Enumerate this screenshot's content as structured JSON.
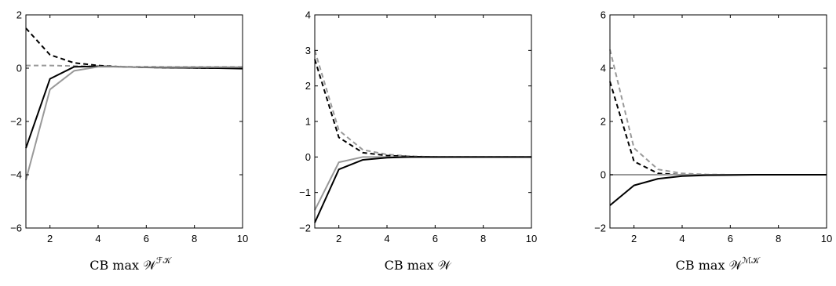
{
  "chart_data": [
    {
      "type": "line",
      "title": "",
      "caption": {
        "text": "CB max 𝒲",
        "sup": "ℱ𝒦"
      },
      "xlabel": "",
      "ylabel": "",
      "xlim": [
        1,
        10
      ],
      "ylim": [
        -6,
        2
      ],
      "xticks": [
        2,
        4,
        6,
        8,
        10
      ],
      "yticks": [
        -6,
        -4,
        -2,
        0,
        2
      ],
      "grid": false,
      "series": [
        {
          "color": "#000000",
          "dash": true,
          "x": [
            1,
            2,
            3,
            4,
            5,
            6,
            7,
            8,
            9,
            10
          ],
          "y": [
            1.5,
            0.5,
            0.2,
            0.1,
            0.05,
            0.03,
            0.02,
            0.01,
            0.0,
            0.0
          ]
        },
        {
          "color": "#999999",
          "dash": true,
          "x": [
            1,
            2,
            3,
            4,
            5,
            6,
            7,
            8,
            9,
            10
          ],
          "y": [
            0.1,
            0.1,
            0.08,
            0.07,
            0.06,
            0.06,
            0.05,
            0.05,
            0.05,
            0.05
          ]
        },
        {
          "color": "#000000",
          "dash": false,
          "x": [
            1,
            2,
            3,
            4,
            5,
            6,
            7,
            8,
            9,
            10
          ],
          "y": [
            -3.0,
            -0.4,
            0.05,
            0.07,
            0.05,
            0.03,
            0.02,
            0.01,
            0.0,
            -0.02
          ]
        },
        {
          "color": "#999999",
          "dash": false,
          "x": [
            1,
            2,
            3,
            4,
            5,
            6,
            7,
            8,
            9,
            10
          ],
          "y": [
            -4.2,
            -0.8,
            -0.1,
            0.05,
            0.05,
            0.04,
            0.04,
            0.04,
            0.04,
            0.04
          ]
        }
      ]
    },
    {
      "type": "line",
      "title": "",
      "caption": {
        "text": "CB max 𝒲",
        "sup": ""
      },
      "xlabel": "",
      "ylabel": "",
      "xlim": [
        1,
        10
      ],
      "ylim": [
        -2,
        4
      ],
      "xticks": [
        2,
        4,
        6,
        8,
        10
      ],
      "yticks": [
        -2,
        -1,
        0,
        1,
        2,
        3,
        4
      ],
      "grid": false,
      "series": [
        {
          "color": "#999999",
          "dash": true,
          "x": [
            1,
            2,
            3,
            4,
            5,
            6,
            7,
            8,
            9,
            10
          ],
          "y": [
            3.0,
            0.75,
            0.2,
            0.07,
            0.02,
            0.0,
            0.0,
            0.0,
            0.0,
            0.0
          ]
        },
        {
          "color": "#000000",
          "dash": true,
          "x": [
            1,
            2,
            3,
            4,
            5,
            6,
            7,
            8,
            9,
            10
          ],
          "y": [
            2.75,
            0.55,
            0.12,
            0.04,
            0.01,
            0.0,
            0.0,
            0.0,
            0.0,
            0.0
          ]
        },
        {
          "color": "#999999",
          "dash": false,
          "x": [
            1,
            2,
            3,
            4,
            5,
            6,
            7,
            8,
            9,
            10
          ],
          "y": [
            -1.5,
            -0.15,
            0.0,
            0.0,
            0.0,
            0.0,
            0.0,
            0.0,
            0.0,
            0.0
          ]
        },
        {
          "color": "#000000",
          "dash": false,
          "x": [
            1,
            2,
            3,
            4,
            5,
            6,
            7,
            8,
            9,
            10
          ],
          "y": [
            -1.85,
            -0.35,
            -0.08,
            -0.02,
            0.0,
            0.0,
            0.0,
            0.0,
            0.0,
            0.0
          ]
        }
      ]
    },
    {
      "type": "line",
      "title": "",
      "caption": {
        "text": "CB max 𝒲",
        "sup": "ℳ𝒦"
      },
      "xlabel": "",
      "ylabel": "",
      "xlim": [
        1,
        10
      ],
      "ylim": [
        -2,
        6
      ],
      "xticks": [
        2,
        4,
        6,
        8,
        10
      ],
      "yticks": [
        -2,
        0,
        2,
        4,
        6
      ],
      "grid": false,
      "series": [
        {
          "color": "#999999",
          "dash": true,
          "x": [
            1,
            2,
            3,
            4,
            5,
            6,
            7,
            8,
            9,
            10
          ],
          "y": [
            4.7,
            1.0,
            0.2,
            0.05,
            0.01,
            0.0,
            0.0,
            0.0,
            0.0,
            0.0
          ]
        },
        {
          "color": "#000000",
          "dash": true,
          "x": [
            1,
            2,
            3,
            4,
            5,
            6,
            7,
            8,
            9,
            10
          ],
          "y": [
            3.5,
            0.5,
            0.05,
            0.0,
            0.0,
            0.0,
            0.0,
            0.0,
            0.0,
            0.0
          ]
        },
        {
          "color": "#999999",
          "dash": false,
          "x": [
            1,
            2,
            3,
            4,
            5,
            6,
            7,
            8,
            9,
            10
          ],
          "y": [
            0.0,
            0.0,
            0.0,
            0.0,
            0.0,
            0.0,
            0.0,
            0.0,
            0.0,
            0.0
          ]
        },
        {
          "color": "#000000",
          "dash": false,
          "x": [
            1,
            2,
            3,
            4,
            5,
            6,
            7,
            8,
            9,
            10
          ],
          "y": [
            -1.15,
            -0.4,
            -0.15,
            -0.05,
            -0.02,
            -0.01,
            0.0,
            0.0,
            0.0,
            0.0
          ]
        }
      ]
    }
  ]
}
